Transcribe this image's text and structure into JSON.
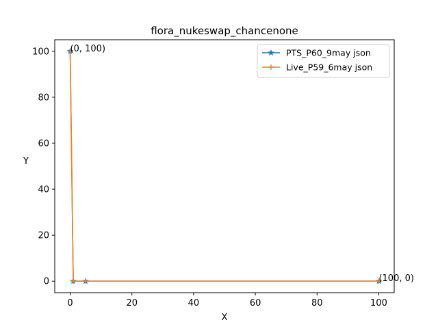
{
  "chart_data": {
    "type": "line",
    "title": "flora_nukeswap_chancenone",
    "xlabel": "X",
    "ylabel": "Y",
    "xlim": [
      -5,
      105
    ],
    "ylim": [
      -5,
      105
    ],
    "xticks": [
      0,
      20,
      40,
      60,
      80,
      100
    ],
    "yticks": [
      0,
      20,
      40,
      60,
      80,
      100
    ],
    "grid": false,
    "legend_position": "top-right",
    "series": [
      {
        "name": "PTS_P60_9may json",
        "color": "#1f77b4",
        "marker": "star",
        "x": [
          0,
          1,
          5,
          100
        ],
        "y": [
          100,
          0,
          0,
          0
        ]
      },
      {
        "name": "Live_P59_6may json",
        "color": "#ff7f0e",
        "marker": "plus",
        "x": [
          0,
          1,
          5,
          100
        ],
        "y": [
          100,
          0,
          0,
          0
        ]
      }
    ],
    "annotations": [
      {
        "text": "(0, 100)",
        "x": 0,
        "y": 100
      },
      {
        "text": "(100, 0)",
        "x": 100,
        "y": 0
      }
    ]
  }
}
